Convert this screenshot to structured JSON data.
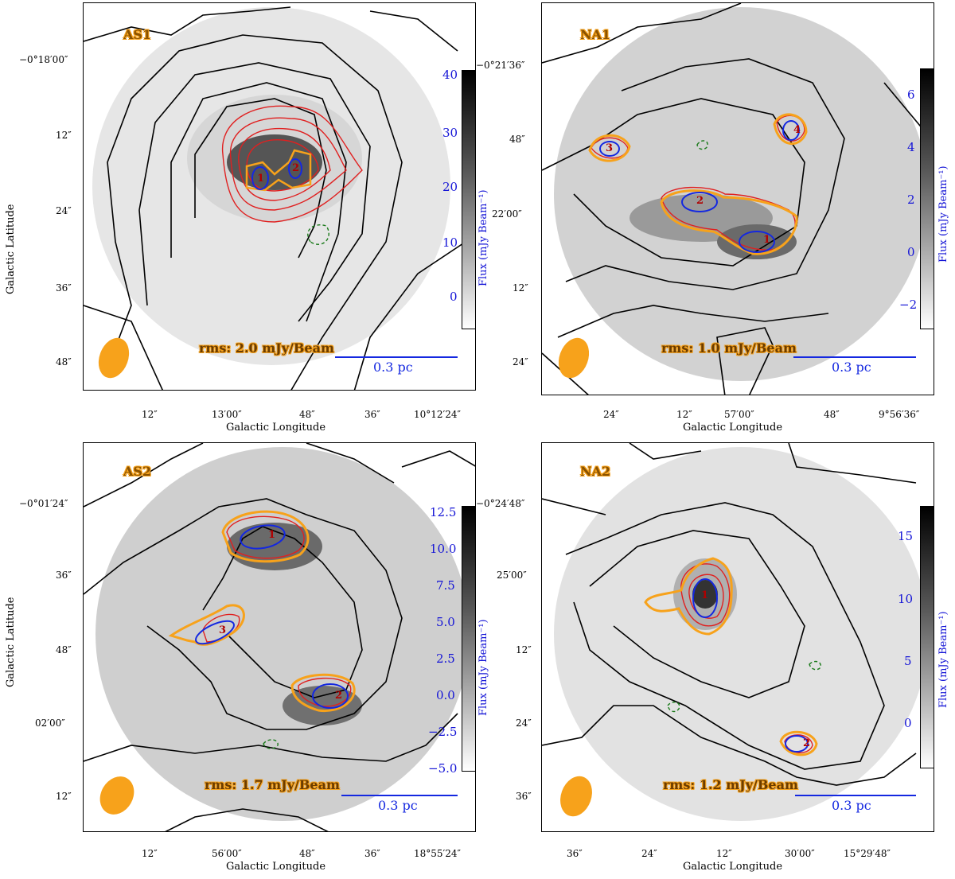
{
  "chart_data": [
    {
      "type": "heatmap",
      "title": "AS1",
      "rms_label": "rms: 2.0 mJy/Beam",
      "scale_label": "0.3 pc",
      "xlabel": "Galactic Longitude",
      "ylabel": "Galactic Latitude",
      "colorbar_label": "Flux (mJy Beam⁻¹)",
      "x_ticks": [
        "12″",
        "13′00″",
        "48″",
        "36″",
        "10°12′24″"
      ],
      "y_ticks": [
        "−0°18′00″",
        "12″",
        "24″",
        "36″",
        "48″"
      ],
      "colorbar_ticks": [
        "40",
        "30",
        "20",
        "10",
        "0"
      ],
      "colorbar_range": [
        -5,
        40
      ],
      "sources": [
        {
          "id": "1"
        },
        {
          "id": "2"
        }
      ]
    },
    {
      "type": "heatmap",
      "title": "NA1",
      "rms_label": "rms: 1.0 mJy/Beam",
      "scale_label": "0.3 pc",
      "xlabel": "Galactic Longitude",
      "ylabel": "Galactic Latitude",
      "colorbar_label": "Flux (mJy Beam⁻¹)",
      "x_ticks": [
        "24″",
        "12″",
        "57′00″",
        "48″",
        "9°56′36″"
      ],
      "y_ticks": [
        "−0°21′36″",
        "48″",
        "22′00″",
        "12″",
        "24″"
      ],
      "colorbar_ticks": [
        "6",
        "4",
        "2",
        "0",
        "−2"
      ],
      "colorbar_range": [
        -3,
        7
      ],
      "sources": [
        {
          "id": "1"
        },
        {
          "id": "2"
        },
        {
          "id": "3"
        },
        {
          "id": "4"
        }
      ]
    },
    {
      "type": "heatmap",
      "title": "AS2",
      "rms_label": "rms: 1.7 mJy/Beam",
      "scale_label": "0.3 pc",
      "xlabel": "Galactic Longitude",
      "ylabel": "Galactic Latitude",
      "colorbar_label": "Flux (mJy Beam⁻¹)",
      "x_ticks": [
        "12″",
        "56′00″",
        "48″",
        "36″",
        "18°55′24″"
      ],
      "y_ticks": [
        "−0°01′24″",
        "36″",
        "48″",
        "02′00″",
        "12″"
      ],
      "colorbar_ticks": [
        "12.5",
        "10.0",
        "7.5",
        "5.0",
        "2.5",
        "0.0",
        "−2.5",
        "−5.0"
      ],
      "colorbar_range": [
        -6,
        14
      ],
      "sources": [
        {
          "id": "1"
        },
        {
          "id": "2"
        },
        {
          "id": "3"
        }
      ]
    },
    {
      "type": "heatmap",
      "title": "NA2",
      "rms_label": "rms: 1.2 mJy/Beam",
      "scale_label": "0.3 pc",
      "xlabel": "Galactic Longitude",
      "ylabel": "Galactic Latitude",
      "colorbar_label": "Flux (mJy Beam⁻¹)",
      "x_ticks": [
        "36″",
        "24″",
        "12″",
        "30′00″",
        "15°29′48″"
      ],
      "y_ticks": [
        "−0°24′48″",
        "25′00″",
        "12″",
        "24″",
        "36″"
      ],
      "colorbar_ticks": [
        "15",
        "10",
        "5",
        "0"
      ],
      "colorbar_range": [
        -2,
        18
      ],
      "sources": [
        {
          "id": "1"
        },
        {
          "id": "2"
        }
      ]
    }
  ]
}
